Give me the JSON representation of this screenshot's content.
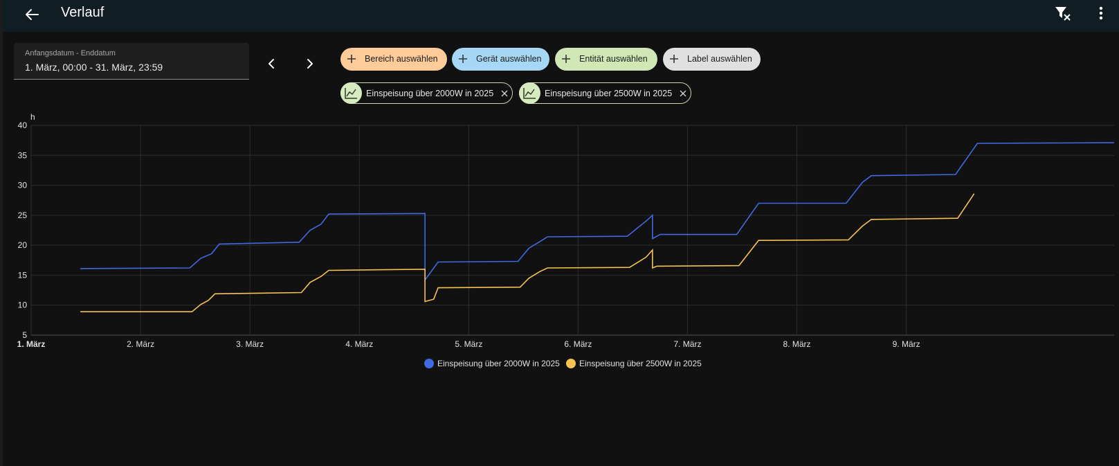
{
  "header": {
    "title": "Verlauf",
    "back_icon": "arrow-left-icon",
    "filter_icon": "filter-remove-icon",
    "menu_icon": "dots-vertical-icon"
  },
  "date_range": {
    "label": "Anfangsdatum - Enddatum",
    "value": "1. März, 00:00 - 31. März, 23:59"
  },
  "pickers": [
    {
      "label": "Bereich auswählen",
      "color": "#ffcc99"
    },
    {
      "label": "Gerät auswählen",
      "color": "#a6d8f5"
    },
    {
      "label": "Entität auswählen",
      "color": "#cfe8b5"
    },
    {
      "label": "Label auswählen",
      "color": "#e0e0e0"
    }
  ],
  "selected_entities": [
    {
      "label": "Einspeisung über 2000W in 2025"
    },
    {
      "label": "Einspeisung über 2500W in 2025"
    }
  ],
  "chart_data": {
    "type": "line",
    "ylabel": "h",
    "ylim": [
      5,
      40
    ],
    "y_ticks": [
      "40",
      "35",
      "30",
      "25",
      "20",
      "15",
      "10",
      "5"
    ],
    "x_ticks": [
      "1. März",
      "2. März",
      "3. März",
      "4. März",
      "5. März",
      "6. März",
      "7. März",
      "8. März",
      "9. März"
    ],
    "xlim": [
      0,
      9.9
    ],
    "series": [
      {
        "name": "Einspeisung über 2000W in 2025",
        "color": "#4169e1",
        "points": [
          [
            0.45,
            16.1
          ],
          [
            1.45,
            16.2
          ],
          [
            1.55,
            17.8
          ],
          [
            1.65,
            18.6
          ],
          [
            1.72,
            20.2
          ],
          [
            2.45,
            20.5
          ],
          [
            2.55,
            22.5
          ],
          [
            2.65,
            23.5
          ],
          [
            2.72,
            25.2
          ],
          [
            3.6,
            25.3
          ],
          [
            3.6,
            14.2
          ],
          [
            3.72,
            17.2
          ],
          [
            4.45,
            17.3
          ],
          [
            4.55,
            19.5
          ],
          [
            4.65,
            20.6
          ],
          [
            4.72,
            21.4
          ],
          [
            5.45,
            21.5
          ],
          [
            5.55,
            23.0
          ],
          [
            5.62,
            24.0
          ],
          [
            5.68,
            25.0
          ],
          [
            5.68,
            21.1
          ],
          [
            5.75,
            21.8
          ],
          [
            6.45,
            21.8
          ],
          [
            6.65,
            27.0
          ],
          [
            7.45,
            27.0
          ],
          [
            7.6,
            30.5
          ],
          [
            7.68,
            31.6
          ],
          [
            8.45,
            31.8
          ],
          [
            8.65,
            37.0
          ],
          [
            9.9,
            37.1
          ]
        ]
      },
      {
        "name": "Einspeisung über 2500W in 2025",
        "color": "#f5c351",
        "points": [
          [
            0.45,
            8.9
          ],
          [
            1.47,
            8.9
          ],
          [
            1.55,
            10.1
          ],
          [
            1.62,
            10.8
          ],
          [
            1.68,
            11.9
          ],
          [
            2.47,
            12.1
          ],
          [
            2.55,
            13.8
          ],
          [
            2.65,
            14.8
          ],
          [
            2.72,
            15.8
          ],
          [
            3.6,
            16.0
          ],
          [
            3.6,
            10.6
          ],
          [
            3.68,
            11.0
          ],
          [
            3.72,
            12.9
          ],
          [
            4.47,
            13.0
          ],
          [
            4.55,
            14.5
          ],
          [
            4.65,
            15.6
          ],
          [
            4.72,
            16.2
          ],
          [
            5.47,
            16.3
          ],
          [
            5.55,
            17.2
          ],
          [
            5.62,
            18.0
          ],
          [
            5.68,
            19.2
          ],
          [
            5.68,
            16.2
          ],
          [
            5.72,
            16.5
          ],
          [
            6.47,
            16.6
          ],
          [
            6.65,
            20.8
          ],
          [
            7.47,
            20.9
          ],
          [
            7.6,
            23.2
          ],
          [
            7.68,
            24.3
          ],
          [
            8.47,
            24.5
          ],
          [
            8.62,
            28.6
          ]
        ]
      }
    ]
  }
}
